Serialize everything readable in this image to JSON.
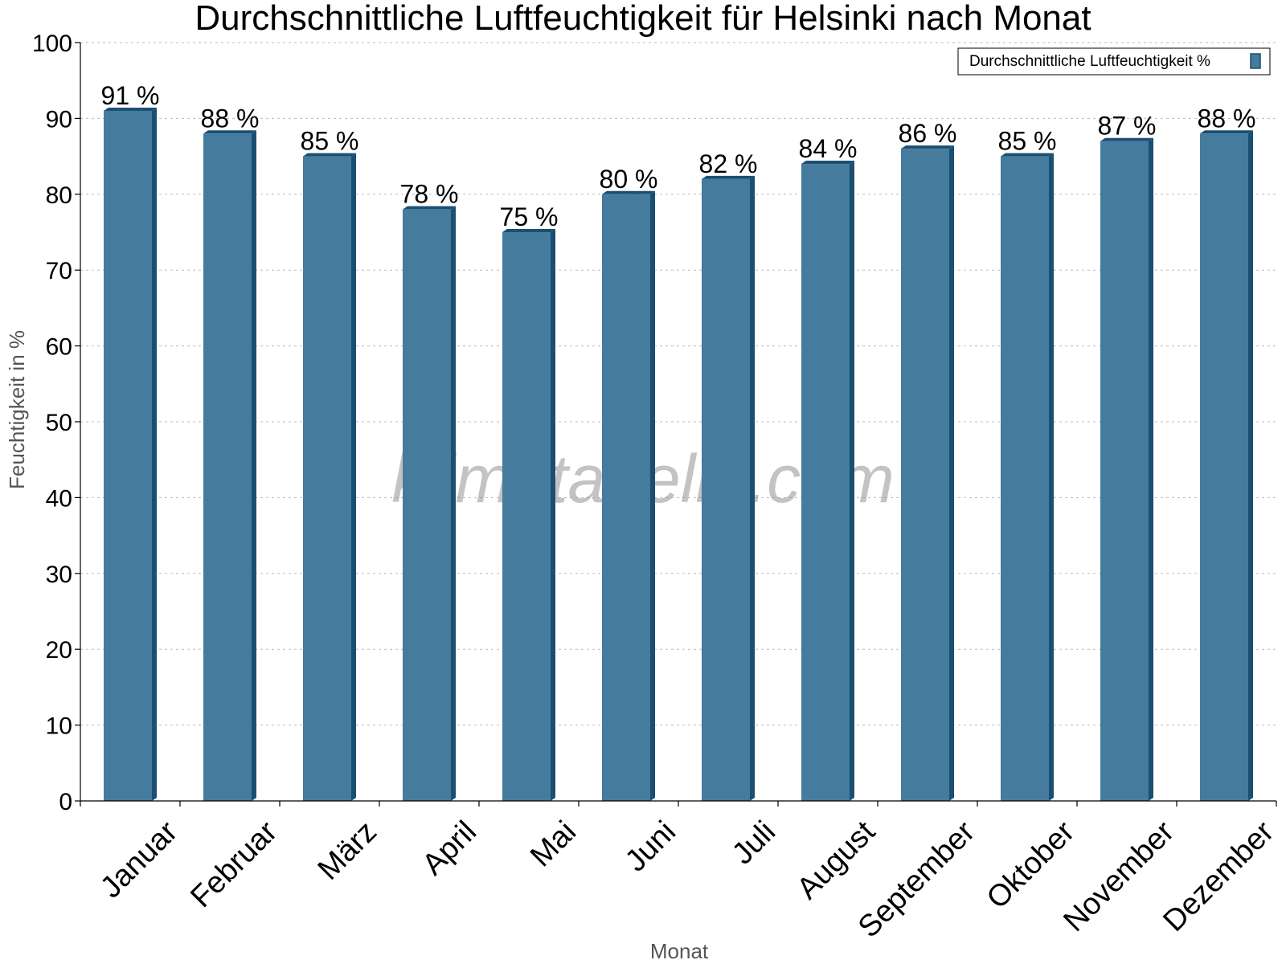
{
  "chart_data": {
    "type": "bar",
    "title": "Durchschnittliche Luftfeuchtigkeit für Helsinki nach Monat",
    "xlabel": "Monat",
    "ylabel": "Feuchtigkeit in %",
    "categories": [
      "Januar",
      "Februar",
      "März",
      "April",
      "Mai",
      "Juni",
      "Juli",
      "August",
      "September",
      "Oktober",
      "November",
      "Dezember"
    ],
    "series": [
      {
        "name": "Durchschnittliche Luftfeuchtigkeit %",
        "values": [
          91,
          88,
          85,
          78,
          75,
          80,
          82,
          84,
          86,
          85,
          87,
          88
        ],
        "labels": [
          "91 %",
          "88 %",
          "85 %",
          "78 %",
          "75 %",
          "80 %",
          "82 %",
          "84 %",
          "86 %",
          "85 %",
          "87 %",
          "88 %"
        ],
        "color": "#457b9d"
      }
    ],
    "ylim": [
      0,
      100
    ],
    "yticks": [
      0,
      10,
      20,
      30,
      40,
      50,
      60,
      70,
      80,
      90,
      100
    ],
    "grid": true,
    "legend_position": "top-right",
    "watermark": "klimatabelle.com",
    "colors": {
      "bar_face": "#457b9d",
      "bar_side": "#1b4f72",
      "bar_top": "#1b4f72"
    }
  }
}
